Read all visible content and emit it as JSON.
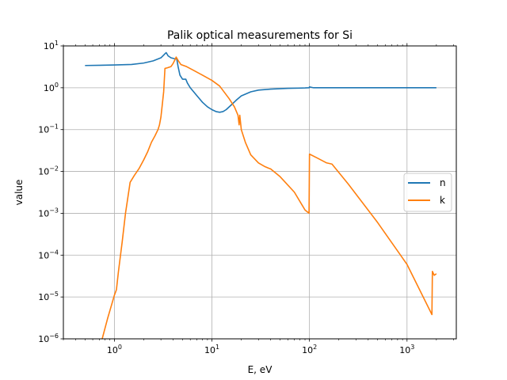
{
  "chart_data": {
    "type": "line",
    "title": "Palik optical measurements for Si",
    "xlabel": "E, eV",
    "ylabel": "value",
    "xscale": "log",
    "yscale": "log",
    "xlim": [
      0.3,
      3200
    ],
    "ylim": [
      1e-06,
      10
    ],
    "grid": true,
    "legend_position": "center-right",
    "x_ticks": [
      {
        "value": 1,
        "base": "10",
        "exp": "0"
      },
      {
        "value": 10,
        "base": "10",
        "exp": "1"
      },
      {
        "value": 100,
        "base": "10",
        "exp": "2"
      },
      {
        "value": 1000,
        "base": "10",
        "exp": "3"
      }
    ],
    "y_ticks": [
      {
        "value": 1e-06,
        "base": "10",
        "exp": "−6"
      },
      {
        "value": 1e-05,
        "base": "10",
        "exp": "−5"
      },
      {
        "value": 0.0001,
        "base": "10",
        "exp": "−4"
      },
      {
        "value": 0.001,
        "base": "10",
        "exp": "−3"
      },
      {
        "value": 0.01,
        "base": "10",
        "exp": "−2"
      },
      {
        "value": 0.1,
        "base": "10",
        "exp": "−1"
      },
      {
        "value": 1,
        "base": "10",
        "exp": "0"
      },
      {
        "value": 10,
        "base": "10",
        "exp": "1"
      }
    ],
    "series": [
      {
        "name": "n",
        "color": "#1f77b4",
        "points": [
          [
            0.5,
            3.4
          ],
          [
            1.0,
            3.5
          ],
          [
            1.5,
            3.6
          ],
          [
            2.0,
            3.9
          ],
          [
            2.5,
            4.4
          ],
          [
            3.0,
            5.2
          ],
          [
            3.3,
            6.5
          ],
          [
            3.4,
            6.9
          ],
          [
            3.55,
            5.8
          ],
          [
            3.8,
            5.2
          ],
          [
            4.2,
            4.9
          ],
          [
            4.35,
            5.0
          ],
          [
            4.5,
            3.2
          ],
          [
            4.7,
            2.0
          ],
          [
            5.0,
            1.6
          ],
          [
            5.4,
            1.6
          ],
          [
            5.6,
            1.3
          ],
          [
            6.0,
            1.0
          ],
          [
            7.0,
            0.65
          ],
          [
            8.0,
            0.45
          ],
          [
            9.0,
            0.35
          ],
          [
            10.0,
            0.3
          ],
          [
            11.0,
            0.27
          ],
          [
            12.0,
            0.26
          ],
          [
            13.0,
            0.27
          ],
          [
            14.0,
            0.3
          ],
          [
            16.0,
            0.4
          ],
          [
            18.0,
            0.52
          ],
          [
            20.0,
            0.64
          ],
          [
            25.0,
            0.8
          ],
          [
            30.0,
            0.88
          ],
          [
            40.0,
            0.93
          ],
          [
            60.0,
            0.97
          ],
          [
            90.0,
            0.99
          ],
          [
            99.0,
            1.0
          ],
          [
            100.0,
            1.05
          ],
          [
            110.0,
            1.0
          ],
          [
            200.0,
            1.0
          ],
          [
            1000.0,
            1.0
          ],
          [
            2000.0,
            1.0
          ]
        ]
      },
      {
        "name": "k",
        "color": "#ff7f0e",
        "points": [
          [
            0.75,
            1e-06
          ],
          [
            0.85,
            3e-06
          ],
          [
            1.0,
            1.1e-05
          ],
          [
            1.05,
            1.5e-05
          ],
          [
            1.1,
            4e-05
          ],
          [
            1.2,
            0.0002
          ],
          [
            1.3,
            0.001
          ],
          [
            1.45,
            0.0055
          ],
          [
            1.6,
            0.008
          ],
          [
            1.8,
            0.012
          ],
          [
            2.0,
            0.019
          ],
          [
            2.2,
            0.03
          ],
          [
            2.4,
            0.05
          ],
          [
            2.6,
            0.07
          ],
          [
            2.8,
            0.1
          ],
          [
            2.9,
            0.13
          ],
          [
            3.0,
            0.2
          ],
          [
            3.1,
            0.4
          ],
          [
            3.2,
            0.8
          ],
          [
            3.3,
            2.9
          ],
          [
            3.5,
            3.0
          ],
          [
            3.8,
            3.2
          ],
          [
            4.0,
            3.8
          ],
          [
            4.2,
            4.8
          ],
          [
            4.3,
            5.4
          ],
          [
            4.5,
            4.5
          ],
          [
            4.8,
            3.6
          ],
          [
            5.5,
            3.2
          ],
          [
            6.5,
            2.6
          ],
          [
            8.0,
            2.0
          ],
          [
            10.0,
            1.5
          ],
          [
            12.0,
            1.1
          ],
          [
            15.0,
            0.55
          ],
          [
            17.0,
            0.35
          ],
          [
            18.5,
            0.22
          ],
          [
            19.0,
            0.13
          ],
          [
            19.3,
            0.22
          ],
          [
            20.0,
            0.1
          ],
          [
            22.0,
            0.05
          ],
          [
            25.0,
            0.025
          ],
          [
            30.0,
            0.016
          ],
          [
            35.0,
            0.013
          ],
          [
            38.0,
            0.012
          ],
          [
            40.0,
            0.0115
          ],
          [
            50.0,
            0.0075
          ],
          [
            70.0,
            0.0032
          ],
          [
            90.0,
            0.0012
          ],
          [
            99.0,
            0.001
          ],
          [
            100.0,
            0.026
          ],
          [
            120.0,
            0.021
          ],
          [
            150.0,
            0.016
          ],
          [
            170.0,
            0.015
          ],
          [
            250.0,
            0.005
          ],
          [
            500.0,
            0.0006
          ],
          [
            1000.0,
            6e-05
          ],
          [
            1800.0,
            3.8e-06
          ],
          [
            1820.0,
            4.1e-05
          ],
          [
            1900.0,
            3.3e-05
          ],
          [
            2000.0,
            3.6e-05
          ]
        ]
      }
    ]
  }
}
